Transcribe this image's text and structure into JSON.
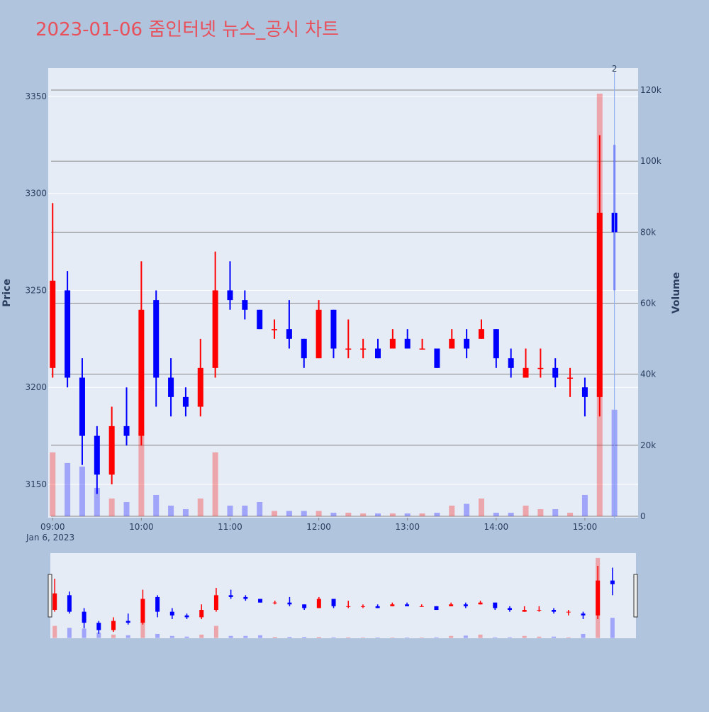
{
  "chart_data": {
    "type": "candlestick",
    "title": "2023-01-06 줌인터넷 뉴스_공시 차트",
    "y_label": "Price",
    "y2_label": "Volume",
    "x_date_label": "Jan 6, 2023",
    "increasing_color": "#ff0000",
    "decreasing_color": "#0000ff",
    "x": [
      "2023-01-06 09:00",
      "2023-01-06 09:10",
      "2023-01-06 09:20",
      "2023-01-06 09:30",
      "2023-01-06 09:40",
      "2023-01-06 09:50",
      "2023-01-06 10:00",
      "2023-01-06 10:10",
      "2023-01-06 10:20",
      "2023-01-06 10:30",
      "2023-01-06 10:40",
      "2023-01-06 10:50",
      "2023-01-06 11:00",
      "2023-01-06 11:10",
      "2023-01-06 11:20",
      "2023-01-06 11:30",
      "2023-01-06 11:40",
      "2023-01-06 11:50",
      "2023-01-06 12:00",
      "2023-01-06 12:10",
      "2023-01-06 12:20",
      "2023-01-06 12:30",
      "2023-01-06 12:40",
      "2023-01-06 12:50",
      "2023-01-06 13:00",
      "2023-01-06 13:10",
      "2023-01-06 13:20",
      "2023-01-06 13:30",
      "2023-01-06 13:40",
      "2023-01-06 13:50",
      "2023-01-06 14:00",
      "2023-01-06 14:10",
      "2023-01-06 14:20",
      "2023-01-06 14:30",
      "2023-01-06 14:40",
      "2023-01-06 14:50",
      "2023-01-06 15:00",
      "2023-01-06 15:10",
      "2023-01-06 15:20"
    ],
    "open": [
      3210,
      3250,
      3205,
      3175,
      3155,
      3180,
      3175,
      3245,
      3205,
      3195,
      3190,
      3210,
      3250,
      3245,
      3240,
      3230,
      3230,
      3225,
      3215,
      3240,
      3220,
      3220,
      3220,
      3220,
      3225,
      3220,
      3220,
      3220,
      3225,
      3225,
      3230,
      3215,
      3205,
      3210,
      3210,
      3205,
      3200,
      3195,
      3290
    ],
    "high": [
      3295,
      3260,
      3215,
      3180,
      3190,
      3200,
      3265,
      3250,
      3215,
      3200,
      3225,
      3270,
      3265,
      3250,
      3240,
      3235,
      3245,
      3225,
      3245,
      3240,
      3235,
      3225,
      3225,
      3230,
      3230,
      3225,
      3220,
      3230,
      3230,
      3235,
      3230,
      3220,
      3220,
      3220,
      3215,
      3210,
      3205,
      3330,
      3325
    ],
    "low": [
      3205,
      3200,
      3160,
      3145,
      3150,
      3170,
      3170,
      3190,
      3185,
      3185,
      3185,
      3205,
      3240,
      3235,
      3230,
      3225,
      3220,
      3210,
      3215,
      3215,
      3215,
      3215,
      3215,
      3220,
      3220,
      3220,
      3210,
      3220,
      3215,
      3225,
      3210,
      3205,
      3205,
      3205,
      3200,
      3195,
      3185,
      3185,
      3250
    ],
    "close": [
      3255,
      3205,
      3175,
      3155,
      3180,
      3175,
      3240,
      3205,
      3195,
      3190,
      3210,
      3250,
      3245,
      3240,
      3230,
      3230,
      3225,
      3215,
      3240,
      3220,
      3220,
      3220,
      3215,
      3225,
      3220,
      3220,
      3210,
      3225,
      3220,
      3230,
      3215,
      3210,
      3210,
      3210,
      3205,
      3205,
      3195,
      3290,
      3280
    ],
    "volume": [
      18000,
      15000,
      14000,
      8000,
      5000,
      4000,
      24000,
      6000,
      3000,
      2000,
      5000,
      18000,
      3000,
      3000,
      4000,
      1500,
      1500,
      1500,
      1500,
      1000,
      1000,
      800,
      800,
      800,
      800,
      800,
      1000,
      3000,
      3500,
      5000,
      1000,
      1000,
      3000,
      2000,
      2000,
      1000,
      6000,
      119000,
      30000
    ],
    "xlim": [
      "2023-01-06 08:57",
      "2023-01-06 15:36"
    ],
    "xticks": [
      {
        "value": "2023-01-06 09:00",
        "label": "09:00"
      },
      {
        "value": "2023-01-06 10:00",
        "label": "10:00"
      },
      {
        "value": "2023-01-06 11:00",
        "label": "11:00"
      },
      {
        "value": "2023-01-06 12:00",
        "label": "12:00"
      },
      {
        "value": "2023-01-06 13:00",
        "label": "13:00"
      },
      {
        "value": "2023-01-06 14:00",
        "label": "14:00"
      },
      {
        "value": "2023-01-06 15:00",
        "label": "15:00"
      }
    ],
    "ylim": [
      3132.8,
      3364.6
    ],
    "yticks": [
      3150,
      3200,
      3250,
      3300,
      3350
    ],
    "y2lim": [
      -400,
      126200
    ],
    "y2ticks": [
      0,
      {
        "value": 20000,
        "label": "20k"
      },
      {
        "value": 40000,
        "label": "40k"
      },
      {
        "value": 60000,
        "label": "60k"
      },
      {
        "value": 80000,
        "label": "80k"
      },
      {
        "value": 100000,
        "label": "100k"
      },
      {
        "value": 120000,
        "label": "120k"
      }
    ],
    "annotations": [
      {
        "text": "2",
        "x": "2023-01-06 15:20"
      }
    ],
    "grid": true
  }
}
